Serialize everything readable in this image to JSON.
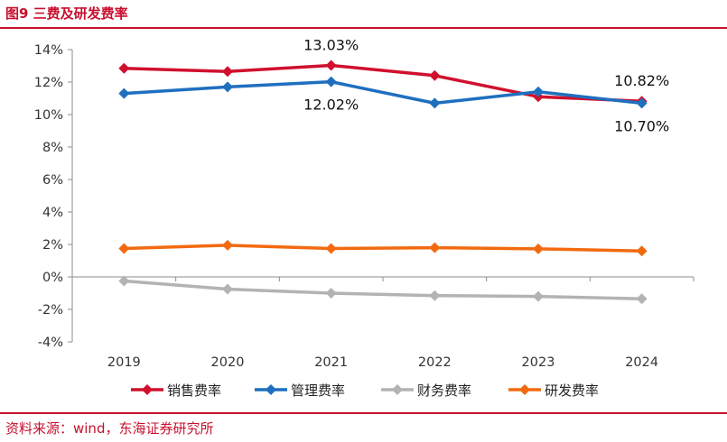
{
  "header": {
    "title": "图9 三费及研发费率"
  },
  "footer": {
    "source": "资料来源：wind，东海证券研究所"
  },
  "chart_data": {
    "type": "line",
    "title": "三费及研发费率",
    "x": [
      "2019",
      "2020",
      "2021",
      "2022",
      "2023",
      "2024"
    ],
    "ylim": [
      -4,
      14
    ],
    "yticks": [
      -4,
      -2,
      0,
      2,
      4,
      6,
      8,
      10,
      12,
      14
    ],
    "ytick_labels": [
      "-4%",
      "-2%",
      "0%",
      "2%",
      "4%",
      "6%",
      "8%",
      "10%",
      "12%",
      "14%"
    ],
    "grid": false,
    "legend": "bottom",
    "series": [
      {
        "name": "销售费率",
        "color": "#d0102e",
        "values": [
          12.85,
          12.65,
          13.03,
          12.4,
          11.1,
          10.82
        ]
      },
      {
        "name": "管理费率",
        "color": "#1f6fbf",
        "values": [
          11.3,
          11.7,
          12.02,
          10.7,
          11.4,
          10.7
        ]
      },
      {
        "name": "财务费率",
        "color": "#b3b3b3",
        "values": [
          -0.25,
          -0.75,
          -1.0,
          -1.15,
          -1.2,
          -1.35
        ]
      },
      {
        "name": "研发费率",
        "color": "#f26a10",
        "values": [
          1.75,
          1.95,
          1.75,
          1.8,
          1.73,
          1.6
        ]
      }
    ],
    "annotations": [
      {
        "text": "13.03%",
        "series": 0,
        "index": 2,
        "pos": "above"
      },
      {
        "text": "12.02%",
        "series": 1,
        "index": 2,
        "pos": "below"
      },
      {
        "text": "10.82%",
        "series": 0,
        "index": 5,
        "pos": "above"
      },
      {
        "text": "10.70%",
        "series": 1,
        "index": 5,
        "pos": "below"
      }
    ]
  }
}
